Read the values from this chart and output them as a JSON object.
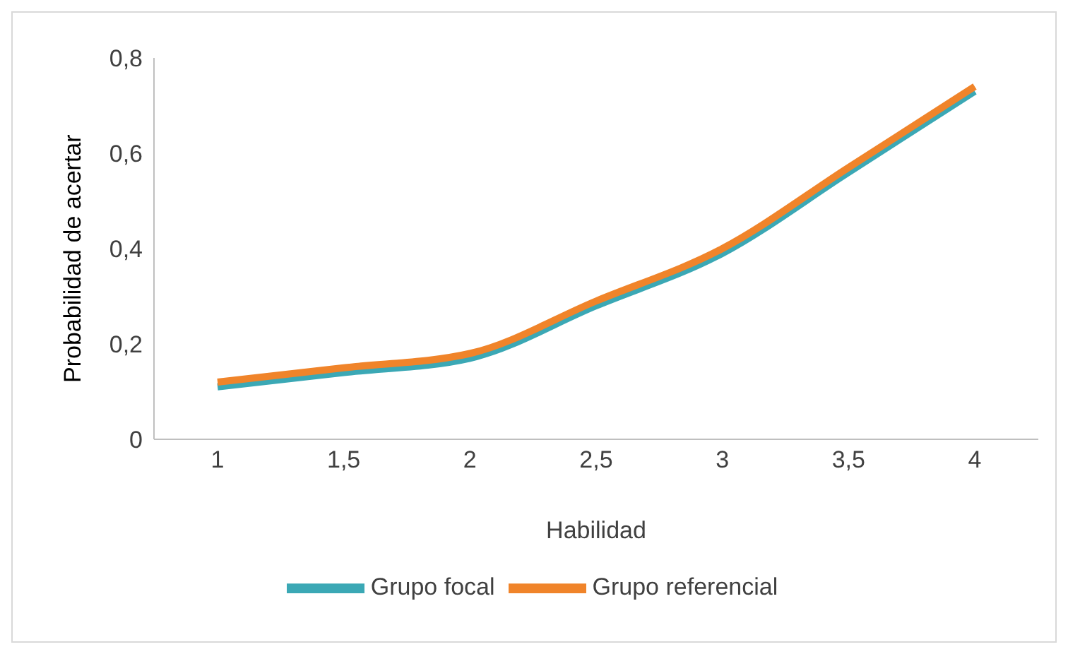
{
  "chart_data": {
    "type": "line",
    "xlabel": "Habilidad",
    "ylabel": "Probabilidad de acertar",
    "categories": [
      "1",
      "1,5",
      "2",
      "2,5",
      "3",
      "3,5",
      "4"
    ],
    "series": [
      {
        "name": "Grupo focal",
        "color": "#3ba8b5",
        "values": [
          0.11,
          0.14,
          0.17,
          0.28,
          0.39,
          0.56,
          0.73
        ]
      },
      {
        "name": "Grupo referencial",
        "color": "#f0842a",
        "values": [
          0.12,
          0.15,
          0.18,
          0.29,
          0.4,
          0.57,
          0.74
        ]
      }
    ],
    "ylim": [
      0,
      0.8
    ],
    "yticks": [
      {
        "value": 0,
        "label": "0"
      },
      {
        "value": 0.2,
        "label": "0,2"
      },
      {
        "value": 0.4,
        "label": "0,4"
      },
      {
        "value": 0.6,
        "label": "0,6"
      },
      {
        "value": 0.8,
        "label": "0,8"
      }
    ],
    "grid": false,
    "legend": "bottom",
    "marker": "none",
    "line_style": "solid"
  }
}
